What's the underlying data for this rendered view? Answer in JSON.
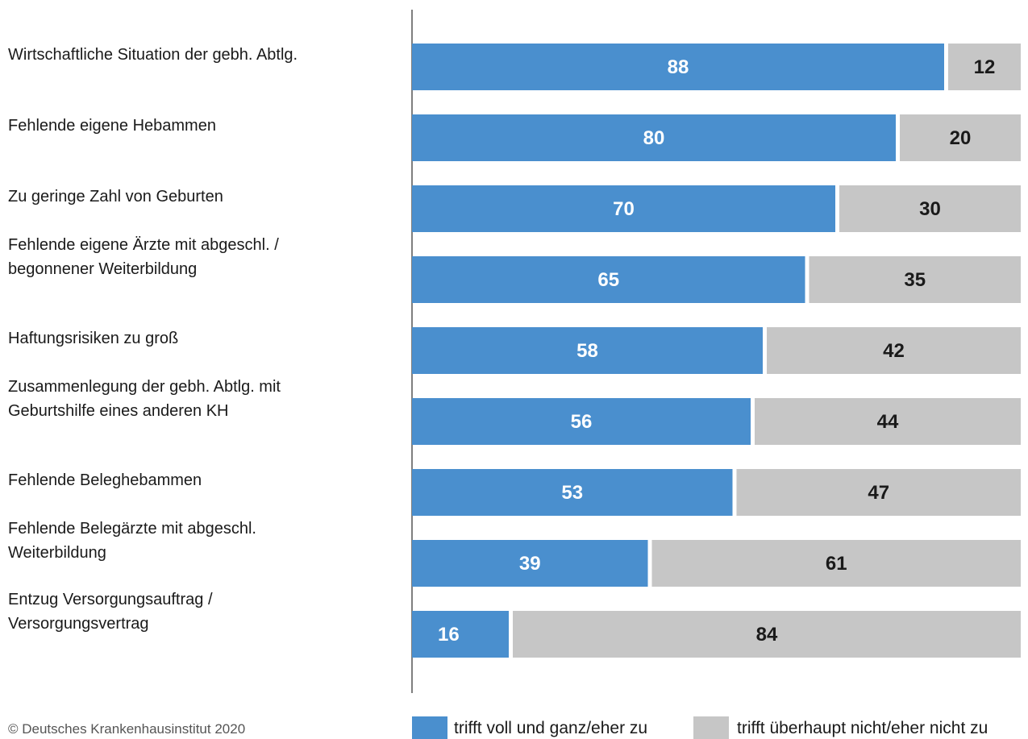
{
  "chart_data": {
    "type": "bar",
    "orientation": "horizontal",
    "stacked": true,
    "categories": [
      "Wirtschaftliche Situation der gebh. Abtlg.",
      "Fehlende eigene Hebammen",
      "Zu geringe Zahl von Geburten",
      "Fehlende eigene Ärzte mit abgeschl. / begonnener Weiterbildung",
      "Haftungsrisiken zu groß",
      "Zusammenlegung der gebh. Abtlg. mit Geburtshilfe eines anderen KH",
      "Fehlende Beleghebammen",
      "Fehlende Belegärzte mit abgeschl. Weiterbildung",
      "Entzug Versorgungsauftrag / Versorgungsvertrag"
    ],
    "category_lines": [
      [
        "Wirtschaftliche Situation der gebh. Abtlg."
      ],
      [
        "Fehlende eigene Hebammen"
      ],
      [
        "Zu geringe Zahl von Geburten"
      ],
      [
        "Fehlende eigene Ärzte mit abgeschl. /",
        "begonnener Weiterbildung"
      ],
      [
        "Haftungsrisiken zu groß"
      ],
      [
        "Zusammenlegung der gebh. Abtlg. mit",
        "Geburtshilfe eines anderen KH"
      ],
      [
        "Fehlende Beleghebammen"
      ],
      [
        "Fehlende Belegärzte mit abgeschl.",
        "Weiterbildung"
      ],
      [
        "Entzug Versorgungsauftrag /",
        "Versorgungsvertrag"
      ]
    ],
    "series": [
      {
        "name": "trifft voll und ganz/eher zu",
        "color": "#4a8fce",
        "label_color": "#ffffff",
        "values": [
          88,
          80,
          70,
          65,
          58,
          56,
          53,
          39,
          16
        ]
      },
      {
        "name": "trifft überhaupt nicht/eher nicht zu",
        "color": "#c6c6c6",
        "label_color": "#1a1a1a",
        "values": [
          12,
          20,
          30,
          35,
          42,
          44,
          47,
          61,
          84
        ]
      }
    ],
    "xlim": [
      0,
      100
    ],
    "grid": false,
    "legend_position": "bottom",
    "title": "",
    "xlabel": "",
    "ylabel": ""
  },
  "source": "© Deutsches Krankenhausinstitut 2020"
}
